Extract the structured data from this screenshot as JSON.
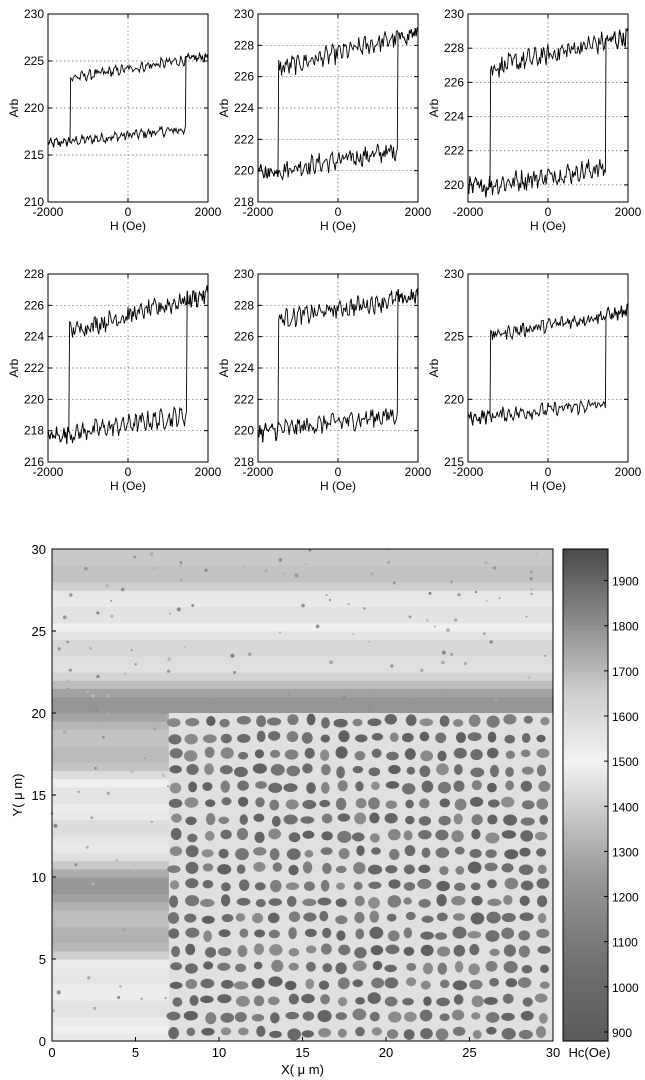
{
  "chart_data": [
    {
      "type": "line",
      "xlabel": "H (Oe)",
      "ylabel": "Arb",
      "xlim": [
        -2000,
        2000
      ],
      "ylim": [
        210,
        230
      ],
      "xticks": [
        -2000,
        0,
        2000
      ],
      "yticks": [
        210,
        215,
        220,
        225,
        230
      ],
      "grid": true,
      "loop": {
        "hc": 1450,
        "lower": [
          216.2,
          218.0
        ],
        "upper": [
          222.8,
          225.5
        ],
        "noise": 0.45,
        "slope_variation": 0.5
      }
    },
    {
      "type": "line",
      "xlabel": "H (Oe)",
      "ylabel": "Arb",
      "xlim": [
        -2000,
        2000
      ],
      "ylim": [
        218,
        230
      ],
      "xticks": [
        -2000,
        0,
        2000
      ],
      "yticks": [
        218,
        220,
        222,
        224,
        226,
        228,
        230
      ],
      "grid": true,
      "loop": {
        "hc": 1500,
        "lower": [
          219.8,
          221.5
        ],
        "upper": [
          226.2,
          228.8
        ],
        "noise": 0.5,
        "slope_variation": 0.5
      }
    },
    {
      "type": "line",
      "xlabel": "H (Oe)",
      "ylabel": "Arb",
      "xlim": [
        -2000,
        2000
      ],
      "ylim": [
        219,
        230
      ],
      "xticks": [
        -2000,
        0,
        2000
      ],
      "yticks": [
        220,
        222,
        224,
        226,
        228,
        230
      ],
      "grid": true,
      "loop": {
        "hc": 1450,
        "lower": [
          219.8,
          221.2
        ],
        "upper": [
          226.5,
          228.7
        ],
        "noise": 0.5,
        "slope_variation": 0.5
      }
    },
    {
      "type": "line",
      "xlabel": "H (Oe)",
      "ylabel": "Arb",
      "xlim": [
        -2000,
        2000
      ],
      "ylim": [
        216,
        228
      ],
      "xticks": [
        -2000,
        0,
        2000
      ],
      "yticks": [
        216,
        218,
        220,
        222,
        224,
        226,
        228
      ],
      "grid": true,
      "loop": {
        "hc": 1480,
        "lower": [
          217.6,
          219.2
        ],
        "upper": [
          224.0,
          226.7
        ],
        "noise": 0.5,
        "slope_variation": 0.5
      }
    },
    {
      "type": "line",
      "xlabel": "H (Oe)",
      "ylabel": "Arb",
      "xlim": [
        -2000,
        2000
      ],
      "ylim": [
        218,
        230
      ],
      "xticks": [
        -2000,
        0,
        2000
      ],
      "yticks": [
        218,
        220,
        222,
        224,
        226,
        228,
        230
      ],
      "grid": true,
      "loop": {
        "hc": 1500,
        "lower": [
          219.9,
          221.2
        ],
        "upper": [
          226.9,
          228.6
        ],
        "noise": 0.5,
        "slope_variation": 0.5
      }
    },
    {
      "type": "line",
      "xlabel": "H (Oe)",
      "ylabel": "Arb",
      "xlim": [
        -2000,
        2000
      ],
      "ylim": [
        215,
        230
      ],
      "xticks": [
        -2000,
        0,
        2000
      ],
      "yticks": [
        215,
        220,
        225,
        230
      ],
      "grid": true,
      "loop": {
        "hc": 1450,
        "lower": [
          218.5,
          219.8
        ],
        "upper": [
          224.8,
          227.0
        ],
        "noise": 0.45,
        "slope_variation": 0.5
      }
    },
    {
      "type": "heatmap",
      "xlabel": "X( μ m)",
      "ylabel": "Y( μ m)",
      "xlim": [
        0,
        30
      ],
      "ylim": [
        0,
        30
      ],
      "xticks": [
        0,
        5,
        10,
        15,
        20,
        25,
        30
      ],
      "yticks": [
        0,
        5,
        10,
        15,
        20,
        25,
        30
      ],
      "colorbar_label": "Hc(Oe)",
      "colorbar_ticks": [
        900,
        1000,
        1100,
        1200,
        1300,
        1400,
        1500,
        1600,
        1700,
        1800,
        1900
      ],
      "colorbar_range": [
        880,
        1970
      ],
      "background_hc": 1400,
      "patterned_region": {
        "x": [
          7,
          30
        ],
        "y": [
          0,
          20
        ]
      },
      "dot_pitch_um": 1.0,
      "dot_hc": 1000,
      "matrix_hc": 1450,
      "colormap": [
        {
          "v": 880,
          "color": "#5a5a5a"
        },
        {
          "v": 1050,
          "color": "#707070"
        },
        {
          "v": 1250,
          "color": "#999999"
        },
        {
          "v": 1500,
          "color": "#f2f2f2"
        },
        {
          "v": 1650,
          "color": "#cfcfcf"
        },
        {
          "v": 1800,
          "color": "#909090"
        },
        {
          "v": 1970,
          "color": "#4a4a4a"
        }
      ]
    }
  ]
}
